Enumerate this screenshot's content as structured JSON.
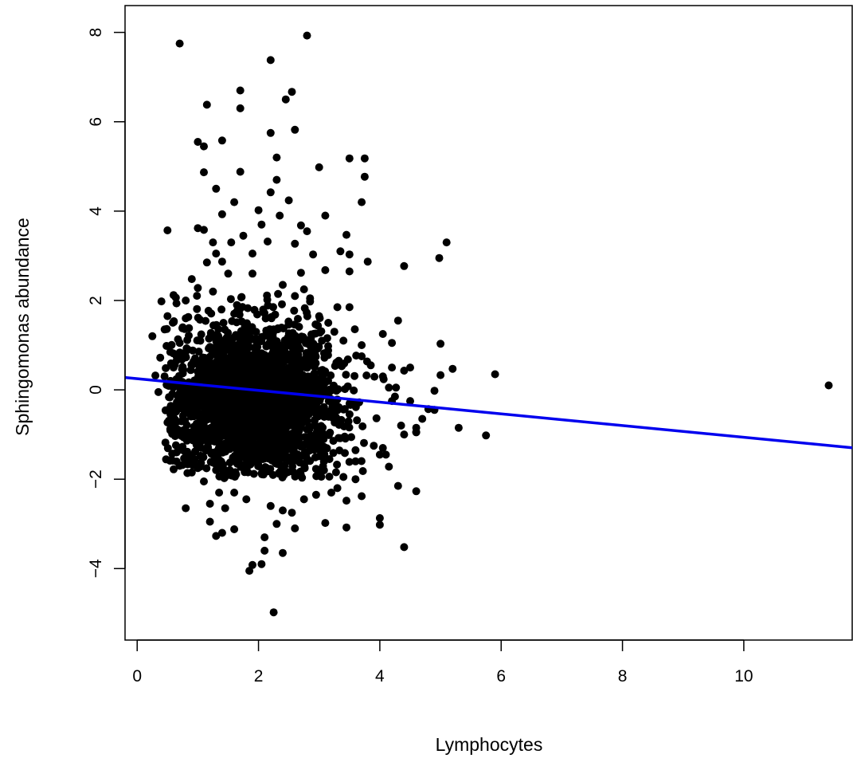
{
  "chart_data": {
    "type": "scatter",
    "title": "",
    "xlabel": "Lymphocytes",
    "ylabel": "Sphingomonas  abundance",
    "xlim": [
      -0.2,
      11.8
    ],
    "ylim": [
      -5.6,
      8.6
    ],
    "xticks": [
      0,
      2,
      4,
      6,
      8,
      10
    ],
    "yticks": [
      -4,
      -2,
      0,
      2,
      4,
      6,
      8
    ],
    "grid": false,
    "legend": "none",
    "point_color": "#000000",
    "line_color": "#0000ee",
    "regression_line": {
      "intercept": 0.25,
      "slope": -0.131
    },
    "cluster": {
      "description_values": {
        "x_center": 1.95,
        "x_sd": 0.65,
        "y_center": -0.25,
        "y_sd": 0.95,
        "n": 2600
      }
    },
    "points": [
      [
        0.7,
        7.75
      ],
      [
        2.8,
        7.93
      ],
      [
        2.2,
        7.38
      ],
      [
        1.7,
        6.7
      ],
      [
        2.55,
        6.67
      ],
      [
        1.15,
        6.38
      ],
      [
        2.45,
        6.5
      ],
      [
        1.7,
        6.3
      ],
      [
        2.6,
        5.82
      ],
      [
        2.2,
        5.75
      ],
      [
        1.4,
        5.58
      ],
      [
        1.0,
        5.55
      ],
      [
        1.1,
        5.45
      ],
      [
        2.3,
        5.2
      ],
      [
        3.5,
        5.18
      ],
      [
        3.75,
        5.18
      ],
      [
        3.0,
        4.98
      ],
      [
        1.7,
        4.88
      ],
      [
        1.1,
        4.87
      ],
      [
        3.75,
        4.77
      ],
      [
        2.3,
        4.7
      ],
      [
        1.3,
        4.5
      ],
      [
        2.2,
        4.42
      ],
      [
        2.5,
        4.24
      ],
      [
        3.7,
        4.2
      ],
      [
        1.6,
        4.2
      ],
      [
        2.0,
        4.02
      ],
      [
        3.1,
        3.9
      ],
      [
        1.4,
        3.93
      ],
      [
        2.7,
        3.68
      ],
      [
        0.5,
        3.57
      ],
      [
        2.8,
        3.55
      ],
      [
        3.45,
        3.47
      ],
      [
        1.0,
        3.62
      ],
      [
        1.1,
        3.58
      ],
      [
        1.25,
        3.3
      ],
      [
        2.15,
        3.32
      ],
      [
        2.6,
        3.27
      ],
      [
        3.35,
        3.1
      ],
      [
        5.1,
        3.3
      ],
      [
        3.5,
        3.03
      ],
      [
        1.9,
        3.05
      ],
      [
        2.9,
        3.03
      ],
      [
        4.98,
        2.95
      ],
      [
        3.8,
        2.87
      ],
      [
        1.4,
        2.87
      ],
      [
        4.4,
        2.77
      ],
      [
        1.9,
        2.6
      ],
      [
        3.1,
        2.68
      ],
      [
        3.5,
        2.65
      ],
      [
        2.7,
        2.62
      ],
      [
        0.9,
        2.48
      ],
      [
        1.0,
        2.28
      ],
      [
        0.8,
        2.0
      ],
      [
        0.4,
        1.98
      ],
      [
        0.6,
        2.12
      ],
      [
        4.3,
        1.55
      ],
      [
        0.5,
        1.65
      ],
      [
        4.05,
        1.25
      ],
      [
        0.25,
        1.2
      ],
      [
        3.3,
        1.85
      ],
      [
        3.5,
        1.85
      ],
      [
        4.2,
        1.05
      ],
      [
        5.0,
        1.03
      ],
      [
        3.7,
        1.0
      ],
      [
        0.3,
        0.32
      ],
      [
        0.38,
        0.72
      ],
      [
        4.5,
        0.5
      ],
      [
        5.2,
        0.47
      ],
      [
        4.2,
        0.5
      ],
      [
        5.9,
        0.35
      ],
      [
        5.0,
        0.33
      ],
      [
        4.4,
        0.43
      ],
      [
        4.9,
        -0.02
      ],
      [
        4.8,
        -0.43
      ],
      [
        4.5,
        -0.25
      ],
      [
        4.7,
        -0.65
      ],
      [
        4.6,
        -0.85
      ],
      [
        4.6,
        -0.95
      ],
      [
        5.3,
        -0.85
      ],
      [
        5.75,
        -1.02
      ],
      [
        4.4,
        -1.0
      ],
      [
        0.5,
        -0.73
      ],
      [
        0.35,
        -0.05
      ],
      [
        4.0,
        -1.45
      ],
      [
        4.1,
        -1.45
      ],
      [
        4.15,
        -1.72
      ],
      [
        4.3,
        -2.15
      ],
      [
        4.6,
        -2.27
      ],
      [
        0.8,
        -2.65
      ],
      [
        1.2,
        -2.95
      ],
      [
        1.3,
        -3.27
      ],
      [
        1.4,
        -3.2
      ],
      [
        1.6,
        -3.12
      ],
      [
        3.1,
        -2.98
      ],
      [
        3.45,
        -3.08
      ],
      [
        4.0,
        -2.87
      ],
      [
        4.0,
        -3.02
      ],
      [
        4.4,
        -3.52
      ],
      [
        2.4,
        -3.65
      ],
      [
        1.9,
        -3.92
      ],
      [
        1.85,
        -4.05
      ],
      [
        2.05,
        -3.9
      ],
      [
        2.25,
        -4.98
      ],
      [
        2.1,
        -3.6
      ],
      [
        2.4,
        -2.7
      ],
      [
        3.7,
        -2.38
      ],
      [
        3.45,
        -2.48
      ],
      [
        11.4,
        0.1
      ],
      [
        4.9,
        -0.45
      ],
      [
        4.2,
        -0.25
      ],
      [
        4.35,
        -0.8
      ],
      [
        4.6,
        -0.95
      ],
      [
        3.4,
        -1.95
      ],
      [
        3.6,
        -2.0
      ],
      [
        3.3,
        -2.2
      ],
      [
        3.6,
        -1.6
      ],
      [
        3.6,
        -1.35
      ],
      [
        3.9,
        -1.25
      ],
      [
        4.05,
        -1.3
      ],
      [
        0.95,
        -1.55
      ],
      [
        1.0,
        -1.75
      ],
      [
        0.7,
        -1.7
      ],
      [
        0.65,
        -1.4
      ],
      [
        0.6,
        -0.85
      ],
      [
        0.55,
        -0.55
      ],
      [
        0.55,
        0.2
      ],
      [
        0.6,
        0.5
      ],
      [
        0.65,
        0.75
      ],
      [
        0.7,
        1.05
      ],
      [
        0.75,
        1.4
      ],
      [
        0.8,
        1.6
      ],
      [
        2.4,
        2.35
      ],
      [
        2.6,
        2.1
      ],
      [
        2.75,
        2.25
      ],
      [
        2.85,
        2.05
      ],
      [
        3.0,
        1.65
      ],
      [
        3.15,
        1.5
      ],
      [
        3.25,
        1.3
      ],
      [
        3.4,
        1.1
      ],
      [
        3.7,
        0.75
      ],
      [
        3.85,
        0.55
      ],
      [
        4.05,
        0.3
      ],
      [
        4.15,
        0.05
      ],
      [
        4.25,
        -0.15
      ],
      [
        1.15,
        2.85
      ],
      [
        1.3,
        3.05
      ],
      [
        1.55,
        3.3
      ],
      [
        1.75,
        3.45
      ],
      [
        2.05,
        3.7
      ],
      [
        2.35,
        3.9
      ],
      [
        1.5,
        2.6
      ],
      [
        1.25,
        2.2
      ],
      [
        1.6,
        -2.3
      ],
      [
        1.8,
        -2.45
      ],
      [
        2.2,
        -2.6
      ],
      [
        2.55,
        -2.75
      ],
      [
        2.75,
        -2.45
      ],
      [
        2.95,
        -2.35
      ],
      [
        3.2,
        -2.3
      ],
      [
        1.35,
        -2.3
      ],
      [
        1.1,
        -2.05
      ],
      [
        0.9,
        -1.85
      ],
      [
        2.3,
        -3.0
      ],
      [
        2.6,
        -3.1
      ],
      [
        2.1,
        -3.3
      ],
      [
        1.45,
        -2.65
      ],
      [
        1.2,
        -2.55
      ]
    ]
  }
}
